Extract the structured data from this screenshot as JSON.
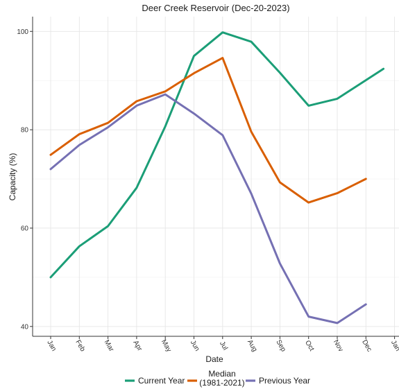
{
  "chart_data": {
    "type": "line",
    "title": "Deer Creek Reservoir (Dec-20-2023)",
    "xlabel": "Date",
    "ylabel": "Capacity (%)",
    "x_ticks": [
      "Jan",
      "Feb",
      "Mar",
      "Apr",
      "May",
      "Jun",
      "Jul",
      "Aug",
      "Sep",
      "Oct",
      "Nov",
      "Dec",
      "Jan"
    ],
    "y_ticks": [
      40,
      60,
      80,
      100
    ],
    "ylim": [
      38,
      103
    ],
    "grid": true,
    "legend_position": "bottom",
    "series": [
      {
        "name": "Current Year",
        "color": "#1b9e77",
        "x": [
          "Jan",
          "Feb",
          "Mar",
          "Apr",
          "May",
          "Jun",
          "Jul",
          "Aug",
          "Sep",
          "Oct",
          "Nov",
          "Dec-20"
        ],
        "values": [
          50.0,
          56.3,
          60.4,
          68.2,
          80.7,
          95.0,
          99.8,
          97.9,
          91.6,
          84.9,
          86.3,
          92.4
        ]
      },
      {
        "name": "Median\n(1981-2021)",
        "color": "#d95f02",
        "x": [
          "Jan",
          "Feb",
          "Mar",
          "Apr",
          "May",
          "Jun",
          "Jul",
          "Aug",
          "Sep",
          "Oct",
          "Nov",
          "Dec"
        ],
        "values": [
          74.9,
          79.1,
          81.4,
          85.8,
          87.8,
          91.5,
          94.6,
          79.6,
          69.3,
          65.2,
          67.1,
          70.0
        ]
      },
      {
        "name": "Previous Year",
        "color": "#7570b3",
        "x": [
          "Jan",
          "Feb",
          "Mar",
          "Apr",
          "May",
          "Jun",
          "Jul",
          "Aug",
          "Sep",
          "Oct",
          "Nov",
          "Dec"
        ],
        "values": [
          72.0,
          76.9,
          80.5,
          84.9,
          87.2,
          83.3,
          78.9,
          67.0,
          52.8,
          42.0,
          40.7,
          44.5
        ]
      }
    ]
  }
}
